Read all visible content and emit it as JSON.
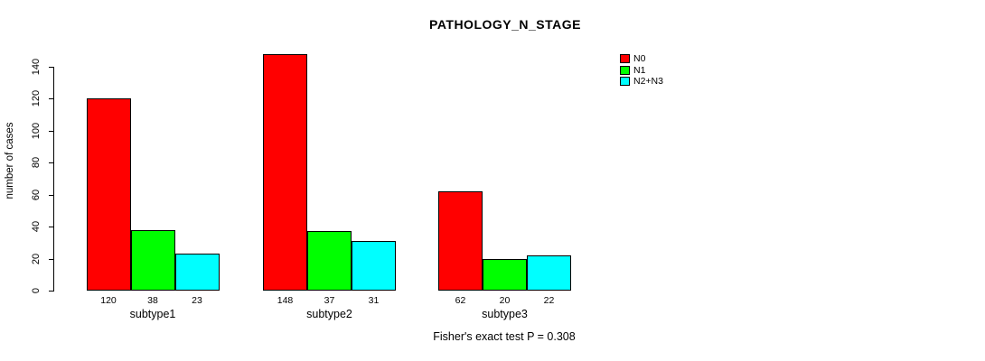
{
  "chart_data": {
    "type": "bar",
    "title": "PATHOLOGY_N_STAGE",
    "ylabel": "number of cases",
    "xlabel": "",
    "categories": [
      "subtype1",
      "subtype2",
      "subtype3"
    ],
    "series": [
      {
        "name": "N0",
        "color": "#ff0000",
        "values": [
          120,
          148,
          62
        ]
      },
      {
        "name": "N1",
        "color": "#00ff00",
        "values": [
          38,
          37,
          20
        ]
      },
      {
        "name": "N2+N3",
        "color": "#00ffff",
        "values": [
          23,
          31,
          22
        ]
      }
    ],
    "bar_value_labels": [
      [
        120,
        38,
        23
      ],
      [
        148,
        37,
        31
      ],
      [
        62,
        20,
        22
      ]
    ],
    "ylim": [
      0,
      140
    ],
    "yticks": [
      0,
      20,
      40,
      60,
      80,
      100,
      120,
      140
    ],
    "grid": false,
    "legend_position": "top-right",
    "annotation": "Fisher's exact test P = 0.308"
  },
  "colors": {
    "axis": "#000000",
    "background": "#ffffff",
    "n0": "#ff0000",
    "n1": "#00ff00",
    "n2n3": "#00ffff"
  }
}
